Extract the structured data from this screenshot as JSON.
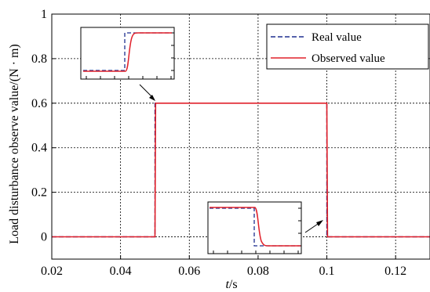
{
  "chart_data": {
    "type": "line",
    "xlabel": "t/s",
    "ylabel": "Load disturbance observe value/(N · m)",
    "xlim": [
      0.02,
      0.13
    ],
    "ylim": [
      -0.1,
      1.0
    ],
    "xticks": [
      "0.02",
      "0.04",
      "0.06",
      "0.08",
      "0.1",
      "0.12"
    ],
    "yticks": [
      "0",
      "0.2",
      "0.4",
      "0.6",
      "0.8",
      "1"
    ],
    "grid": true,
    "legend_position": "top-right",
    "series": [
      {
        "name": "Real value",
        "style": "dashed",
        "color": "#1f2f8f",
        "x": [
          0.02,
          0.05,
          0.05,
          0.1,
          0.1,
          0.13
        ],
        "y": [
          0,
          0,
          0.6,
          0.6,
          0,
          0
        ]
      },
      {
        "name": "Observed value",
        "style": "solid",
        "color": "#e0202a",
        "x": [
          0.02,
          0.05,
          0.0502,
          0.1,
          0.1002,
          0.13
        ],
        "y": [
          0,
          0,
          0.6,
          0.6,
          0,
          0
        ]
      }
    ],
    "insets": [
      {
        "label": "rise-zoom",
        "points_to": {
          "x": 0.05,
          "y": 0.6
        }
      },
      {
        "label": "fall-zoom",
        "points_to": {
          "x": 0.1,
          "y": 0
        }
      }
    ]
  }
}
